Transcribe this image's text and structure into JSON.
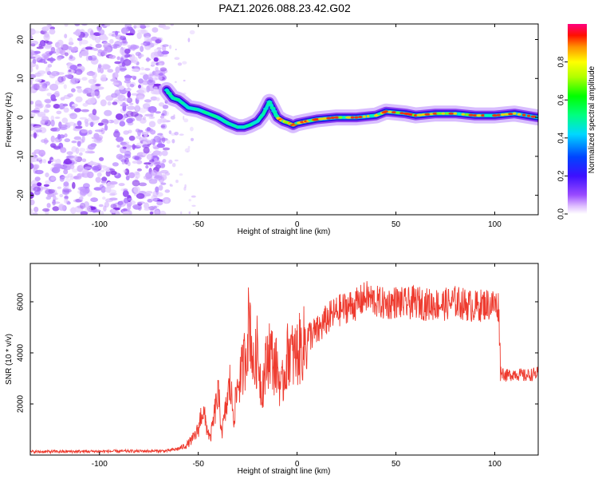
{
  "title": "PAZ1.2026.088.23.42.G02",
  "chart_data": [
    {
      "type": "heatmap",
      "title": "PAZ1.2026.088.23.42.G02",
      "xlabel": "Height of straight line (km)",
      "ylabel": "Frequency (Hz)",
      "xlim": [
        -135,
        122
      ],
      "ylim": [
        -25,
        24
      ],
      "xticks": [
        -100,
        -50,
        0,
        50,
        100
      ],
      "yticks": [
        -20,
        -10,
        0,
        10,
        20
      ],
      "xtick_labels": [
        "-100",
        "-50",
        "0",
        "50",
        "100"
      ],
      "ytick_labels": [
        "-20",
        "-10",
        "0",
        "10",
        "20"
      ],
      "noise_region_km": [
        -135,
        -66
      ],
      "ridge": [
        [
          -66,
          7
        ],
        [
          -63,
          5
        ],
        [
          -60,
          4.5
        ],
        [
          -55,
          2.5
        ],
        [
          -50,
          2
        ],
        [
          -45,
          1
        ],
        [
          -40,
          0
        ],
        [
          -35,
          -1.5
        ],
        [
          -30,
          -2.5
        ],
        [
          -27,
          -2.5
        ],
        [
          -24,
          -2
        ],
        [
          -20,
          -1
        ],
        [
          -17,
          1
        ],
        [
          -14,
          4
        ],
        [
          -12,
          2
        ],
        [
          -10,
          0
        ],
        [
          -7,
          -1
        ],
        [
          -4,
          -1.5
        ],
        [
          -2,
          -2
        ],
        [
          0,
          -1.5
        ],
        [
          5,
          -1
        ],
        [
          10,
          -0.5
        ],
        [
          20,
          0
        ],
        [
          30,
          0
        ],
        [
          40,
          0.5
        ],
        [
          45,
          1.5
        ],
        [
          55,
          1
        ],
        [
          60,
          0.5
        ],
        [
          70,
          1
        ],
        [
          80,
          1
        ],
        [
          90,
          0.5
        ],
        [
          100,
          0.5
        ],
        [
          110,
          1
        ],
        [
          122,
          0
        ]
      ],
      "colorbar": {
        "label": "Normalized spectral amplitude",
        "range": [
          0,
          1
        ],
        "ticks": [
          0.0,
          0.2,
          0.4,
          0.6,
          0.8
        ],
        "tick_labels": [
          "0.0",
          "0.2",
          "0.4",
          "0.6",
          "0.8"
        ]
      }
    },
    {
      "type": "line",
      "xlabel": "Height of straight line (km)",
      "ylabel": "SNR (10 * v/v)",
      "xlim": [
        -135,
        122
      ],
      "ylim": [
        0,
        7500
      ],
      "xticks": [
        -100,
        -50,
        0,
        50,
        100
      ],
      "yticks": [
        2000,
        4000,
        6000
      ],
      "xtick_labels": [
        "-100",
        "-50",
        "0",
        "50",
        "100"
      ],
      "ytick_labels": [
        "2000",
        "4000",
        "6000"
      ],
      "color": "#ee3a2e",
      "series": [
        {
          "name": "SNR",
          "x": [
            -135,
            -110,
            -85,
            -66,
            -60,
            -56,
            -52,
            -50,
            -48,
            -46,
            -44,
            -42,
            -40,
            -38,
            -36,
            -34,
            -32,
            -30,
            -28,
            -26,
            -24,
            -22,
            -20,
            -18,
            -16,
            -14,
            -12,
            -10,
            -8,
            -6,
            -4,
            -2,
            0,
            3,
            6,
            10,
            15,
            20,
            25,
            30,
            35,
            40,
            45,
            50,
            55,
            60,
            65,
            70,
            75,
            80,
            85,
            90,
            95,
            100,
            102,
            103,
            106,
            110,
            115,
            122
          ],
          "values": [
            130,
            140,
            150,
            160,
            250,
            380,
            700,
            1000,
            1800,
            1200,
            600,
            1500,
            2400,
            900,
            1800,
            2800,
            1500,
            2800,
            3200,
            4000,
            5500,
            3200,
            4200,
            2500,
            3400,
            4200,
            3600,
            3400,
            2500,
            3400,
            4200,
            3800,
            4000,
            4300,
            4700,
            4800,
            5300,
            5600,
            5800,
            5900,
            6200,
            6000,
            5900,
            6000,
            5900,
            6000,
            5900,
            5900,
            5900,
            6000,
            5900,
            5800,
            5900,
            5900,
            5800,
            3300,
            3100,
            3200,
            3100,
            3200
          ]
        }
      ]
    }
  ]
}
